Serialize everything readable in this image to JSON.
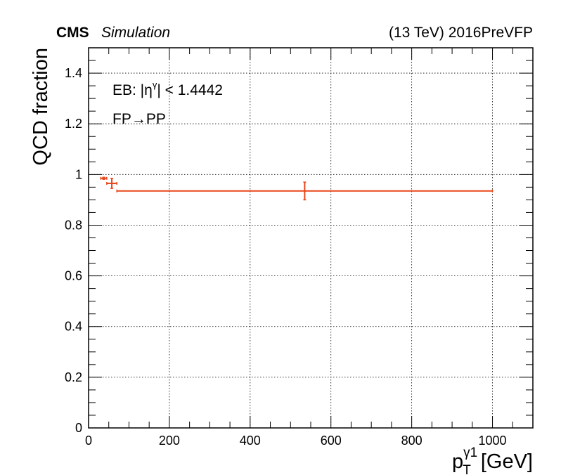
{
  "header": {
    "experiment": "CMS",
    "status": "Simulation",
    "energy_era": "(13 TeV) 2016PreVFP"
  },
  "annotations": {
    "region_prefix": "EB: |η",
    "region_sup": "γ",
    "region_suffix": "| < 1.4442",
    "transition_from": "FP",
    "transition_arrow": "→",
    "transition_to": "PP"
  },
  "axes": {
    "x_title_main": "p",
    "x_title_sub": "T",
    "x_title_sup": "γ1",
    "x_title_unit": "[GeV]",
    "y_title": "QCD fraction"
  },
  "chart_data": {
    "type": "scatter",
    "title": "",
    "xlabel": "p_T^γ1 [GeV]",
    "ylabel": "QCD fraction",
    "xlim": [
      0,
      1100
    ],
    "ylim": [
      0,
      1.5
    ],
    "grid": true,
    "x_ticks": [
      0,
      200,
      400,
      600,
      800,
      1000
    ],
    "y_ticks": [
      0,
      0.2,
      0.4,
      0.6,
      0.8,
      1,
      1.2,
      1.4
    ],
    "x_tick_labels": [
      "0",
      "200",
      "400",
      "600",
      "800",
      "1000"
    ],
    "y_tick_labels": [
      "0",
      "0.2",
      "0.4",
      "0.6",
      "0.8",
      "1",
      "1.2",
      "1.4"
    ],
    "series_color": "#e8471a",
    "points": [
      {
        "x": 37.5,
        "xlow": 30,
        "xhigh": 45,
        "y": 0.985,
        "yerr": 0.004
      },
      {
        "x": 57.5,
        "xlow": 45,
        "xhigh": 70,
        "y": 0.965,
        "yerr": 0.02
      },
      {
        "x": 535,
        "xlow": 70,
        "xhigh": 1000,
        "y": 0.935,
        "yerr": 0.035
      }
    ]
  }
}
